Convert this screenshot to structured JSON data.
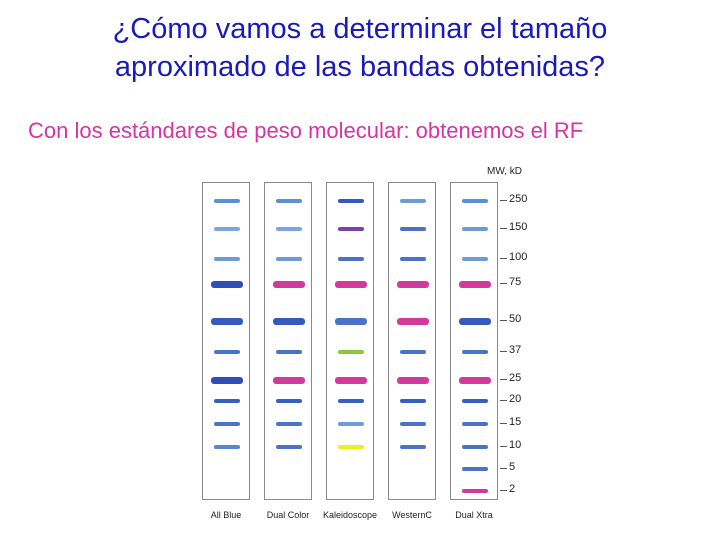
{
  "title": {
    "line1": "¿Cómo vamos a determinar el tamaño",
    "line2": "aproximado de las bandas obtenidas?"
  },
  "subtitle": "Con los estándares de peso molecular: obtenemos el RF",
  "figure": {
    "mw_header": "MW, kD",
    "mw_markers": [
      {
        "label": "250",
        "value": 250
      },
      {
        "label": "150",
        "value": 150
      },
      {
        "label": "100",
        "value": 100
      },
      {
        "label": "75",
        "value": 75
      },
      {
        "label": "50",
        "value": 50
      },
      {
        "label": "37",
        "value": 37
      },
      {
        "label": "25",
        "value": 25
      },
      {
        "label": "20",
        "value": 20
      },
      {
        "label": "15",
        "value": 15
      },
      {
        "label": "10",
        "value": 10
      },
      {
        "label": "5",
        "value": 5
      },
      {
        "label": "2",
        "value": 2
      }
    ],
    "lanes": [
      {
        "name": "All Blue",
        "bands": [
          {
            "mw": 250,
            "color": "#5b8fd6"
          },
          {
            "mw": 150,
            "color": "#7aa6e0"
          },
          {
            "mw": 100,
            "color": "#6d9bd9"
          },
          {
            "mw": 75,
            "color": "#2e4fb8"
          },
          {
            "mw": 50,
            "color": "#3559bd"
          },
          {
            "mw": 37,
            "color": "#4a73c8"
          },
          {
            "mw": 25,
            "color": "#2e4fb8"
          },
          {
            "mw": 20,
            "color": "#3a5fc2"
          },
          {
            "mw": 15,
            "color": "#4a73c8"
          },
          {
            "mw": 10,
            "color": "#5b85cf"
          }
        ]
      },
      {
        "name": "Dual Color",
        "bands": [
          {
            "mw": 250,
            "color": "#5b8fd6"
          },
          {
            "mw": 150,
            "color": "#7aa6e0"
          },
          {
            "mw": 100,
            "color": "#6d9bd9"
          },
          {
            "mw": 75,
            "color": "#d13a9c"
          },
          {
            "mw": 50,
            "color": "#3559bd"
          },
          {
            "mw": 37,
            "color": "#4a73c8"
          },
          {
            "mw": 25,
            "color": "#d13a9c"
          },
          {
            "mw": 20,
            "color": "#3a5fc2"
          },
          {
            "mw": 15,
            "color": "#4a73c8"
          },
          {
            "mw": 10,
            "color": "#4a73c8"
          }
        ]
      },
      {
        "name": "Kaleidoscope",
        "bands": [
          {
            "mw": 250,
            "color": "#3559bd"
          },
          {
            "mw": 150,
            "color": "#7b3fb0"
          },
          {
            "mw": 100,
            "color": "#4a73c8"
          },
          {
            "mw": 75,
            "color": "#d13a9c"
          },
          {
            "mw": 50,
            "color": "#4a73c8"
          },
          {
            "mw": 37,
            "color": "#8cc63f"
          },
          {
            "mw": 25,
            "color": "#d13a9c"
          },
          {
            "mw": 20,
            "color": "#3a5fc2"
          },
          {
            "mw": 15,
            "color": "#6d9bd9"
          },
          {
            "mw": 10,
            "color": "#f2ec1a"
          }
        ]
      },
      {
        "name": "WesternC",
        "bands": [
          {
            "mw": 250,
            "color": "#6d9bd9"
          },
          {
            "mw": 150,
            "color": "#4a73c8"
          },
          {
            "mw": 100,
            "color": "#4a73c8"
          },
          {
            "mw": 75,
            "color": "#d13a9c"
          },
          {
            "mw": 50,
            "color": "#d13a9c"
          },
          {
            "mw": 37,
            "color": "#4a73c8"
          },
          {
            "mw": 25,
            "color": "#d13a9c"
          },
          {
            "mw": 20,
            "color": "#3a5fc2"
          },
          {
            "mw": 15,
            "color": "#4a73c8"
          },
          {
            "mw": 10,
            "color": "#4a73c8"
          }
        ]
      },
      {
        "name": "Dual Xtra",
        "bands": [
          {
            "mw": 250,
            "color": "#5b8fd6"
          },
          {
            "mw": 150,
            "color": "#6d9bd9"
          },
          {
            "mw": 100,
            "color": "#6d9bd9"
          },
          {
            "mw": 75,
            "color": "#d13a9c"
          },
          {
            "mw": 50,
            "color": "#3559bd"
          },
          {
            "mw": 37,
            "color": "#4a73c8"
          },
          {
            "mw": 25,
            "color": "#d13a9c"
          },
          {
            "mw": 20,
            "color": "#3a5fc2"
          },
          {
            "mw": 15,
            "color": "#4a73c8"
          },
          {
            "mw": 10,
            "color": "#4a73c8"
          },
          {
            "mw": 5,
            "color": "#4a73c8"
          },
          {
            "mw": 2,
            "color": "#d13a9c"
          }
        ]
      }
    ]
  }
}
